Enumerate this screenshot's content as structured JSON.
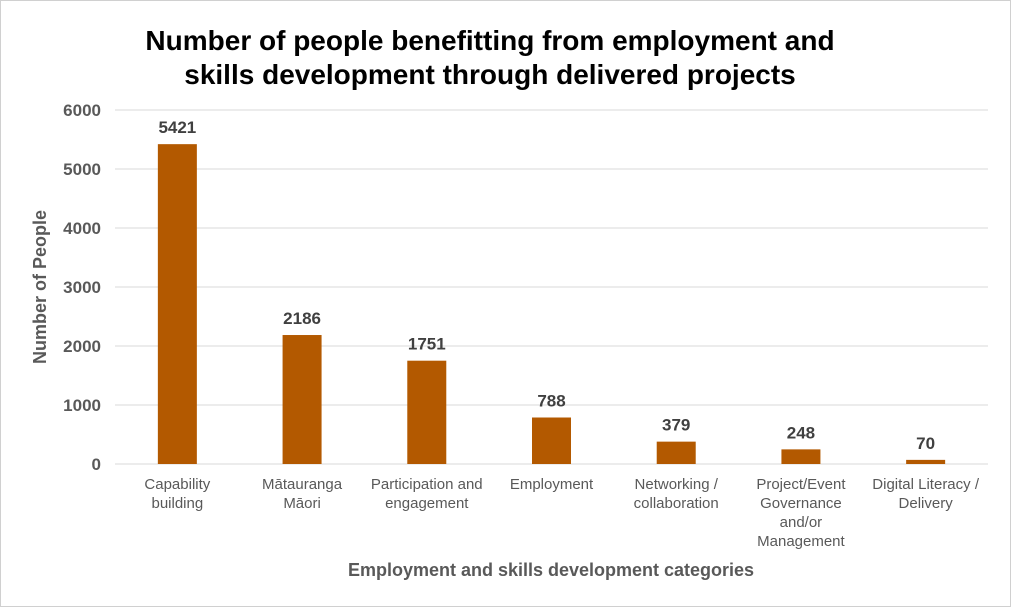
{
  "chart_data": {
    "type": "bar",
    "title_lines": [
      "Number of people benefitting from employment and",
      "skills development through delivered projects"
    ],
    "xlabel": "Employment and skills development categories",
    "ylabel": "Number of People",
    "ylim": [
      0,
      6000
    ],
    "yticks": [
      "0",
      "1000",
      "2000",
      "3000",
      "4000",
      "5000",
      "6000"
    ],
    "categories": [
      [
        "Capability",
        "building"
      ],
      [
        "Mātauranga",
        "Māori"
      ],
      [
        "Participation and",
        "engagement"
      ],
      [
        "Employment"
      ],
      [
        "Networking /",
        "collaboration"
      ],
      [
        "Project/Event",
        "Governance",
        "and/or",
        "Management"
      ],
      [
        "Digital Literacy /",
        "Delivery"
      ]
    ],
    "values": [
      5421,
      2186,
      1751,
      788,
      379,
      248,
      70
    ],
    "data_labels": [
      "5421",
      "2186",
      "1751",
      "788",
      "379",
      "248",
      "70"
    ],
    "bar_color": "#b35900",
    "grid": true,
    "gridline_color": "#d9d9d9",
    "legend": "none"
  }
}
